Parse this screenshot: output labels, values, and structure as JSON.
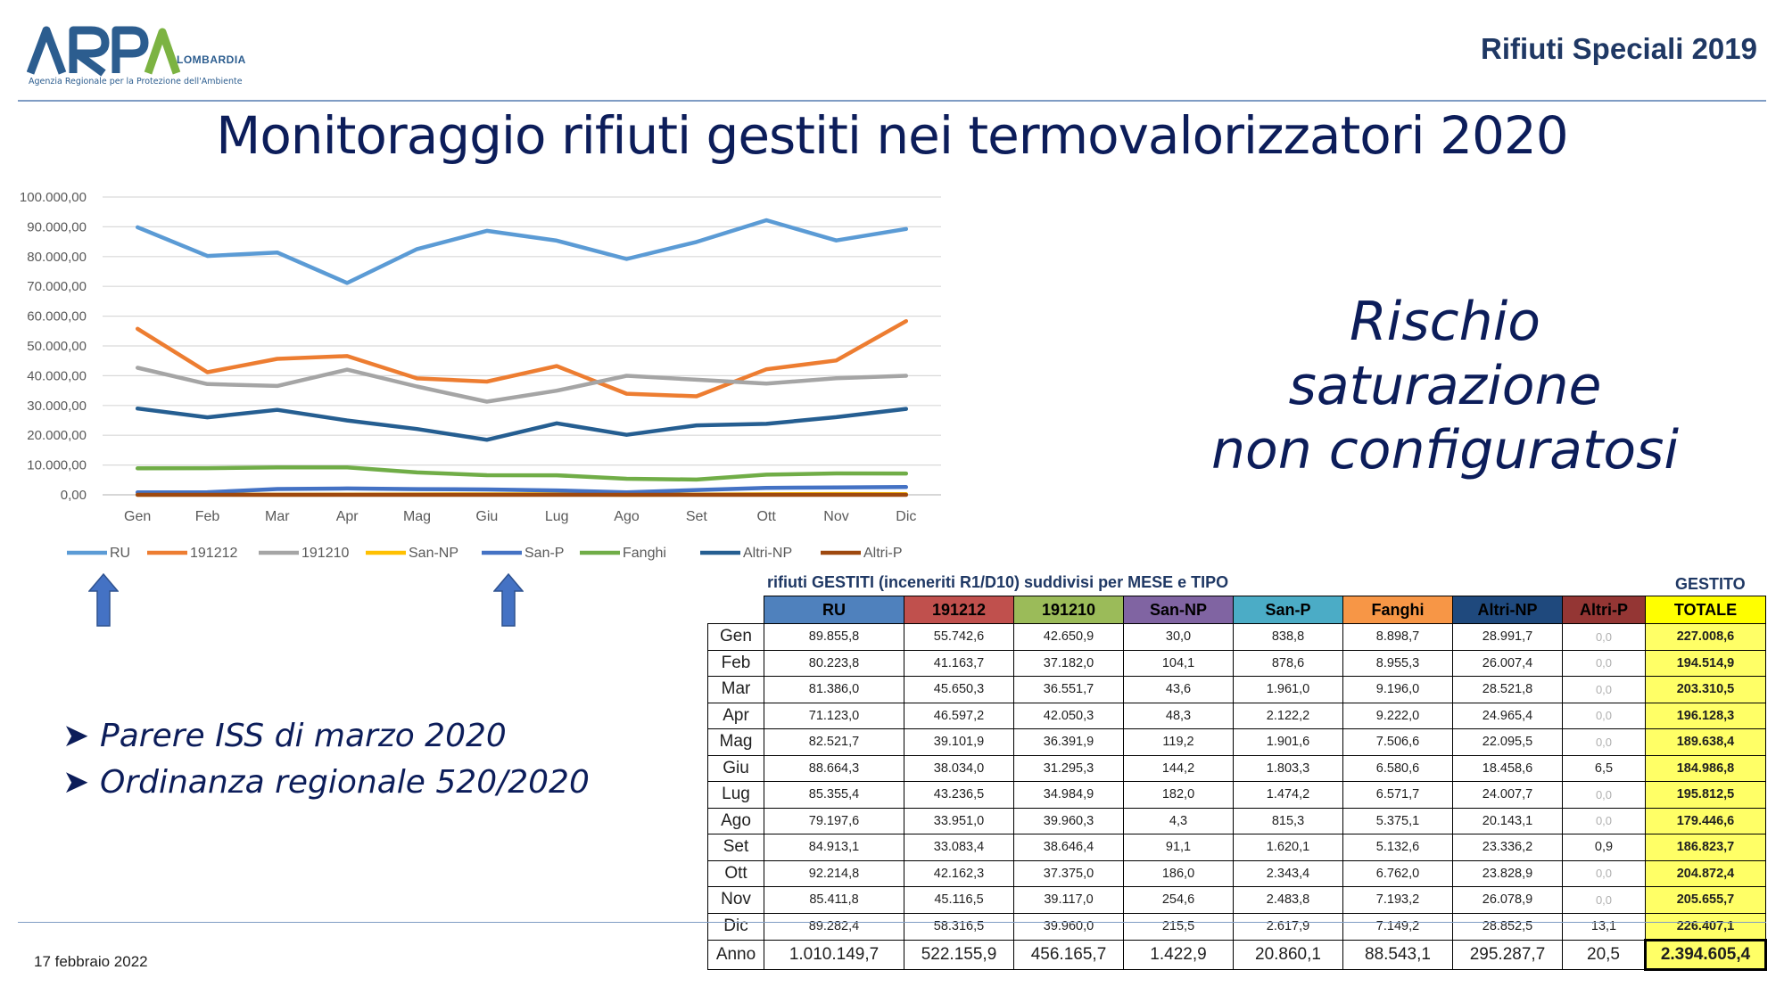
{
  "header": {
    "logo_name": "ARPA",
    "logo_region": "LOMBARDIA",
    "logo_subtitle": "Agenzia Regionale per la Protezione dell'Ambiente",
    "right_title": "Rifiuti Speciali 2019"
  },
  "main_title": "Monitoraggio rifiuti gestiti nei termovalorizzatori 2020",
  "side_text": [
    "Rischio",
    "saturazione",
    "non configuratosi"
  ],
  "bullets": [
    "Parere ISS di marzo 2020",
    "Ordinanza regionale 520/2020"
  ],
  "footer": {
    "date": "17 febbraio 2022"
  },
  "colors": {
    "title": "#0c1d5a",
    "arrow": "#4472c4",
    "total_highlight": "#ffff66"
  },
  "chart_data": {
    "type": "line",
    "categories": [
      "Gen",
      "Feb",
      "Mar",
      "Apr",
      "Mag",
      "Giu",
      "Lug",
      "Ago",
      "Set",
      "Ott",
      "Nov",
      "Dic"
    ],
    "ylim": [
      0,
      100000
    ],
    "yticks": [
      "0,00",
      "10.000,00",
      "20.000,00",
      "30.000,00",
      "40.000,00",
      "50.000,00",
      "60.000,00",
      "70.000,00",
      "80.000,00",
      "90.000,00",
      "100.000,00"
    ],
    "grid": true,
    "legend_position": "bottom",
    "series": [
      {
        "name": "RU",
        "color": "#5b9bd5",
        "values": [
          89855.8,
          80223.8,
          81386.0,
          71123.0,
          82521.7,
          88664.3,
          85355.4,
          79197.6,
          84913.1,
          92214.8,
          85411.8,
          89282.4
        ]
      },
      {
        "name": "191212",
        "color": "#ed7d31",
        "values": [
          55742.6,
          41163.7,
          45650.3,
          46597.2,
          39101.9,
          38034.0,
          43236.5,
          33951.0,
          33083.4,
          42162.3,
          45116.5,
          58316.5
        ]
      },
      {
        "name": "191210",
        "color": "#a5a5a5",
        "values": [
          42650.9,
          37182.0,
          36551.7,
          42050.3,
          36391.9,
          31295.3,
          34984.9,
          39960.3,
          38646.4,
          37375.0,
          39117.0,
          39960.0
        ]
      },
      {
        "name": "San-NP",
        "color": "#ffc000",
        "values": [
          30.0,
          104.1,
          43.6,
          48.3,
          119.2,
          144.2,
          182.0,
          4.3,
          91.1,
          186.0,
          254.6,
          215.5
        ]
      },
      {
        "name": "San-P",
        "color": "#4472c4",
        "values": [
          838.8,
          878.6,
          1961.0,
          2122.2,
          1901.6,
          1803.3,
          1474.2,
          815.3,
          1620.1,
          2343.4,
          2483.8,
          2617.9
        ]
      },
      {
        "name": "Fanghi",
        "color": "#70ad47",
        "values": [
          8898.7,
          8955.3,
          9196.0,
          9222.0,
          7506.6,
          6580.6,
          6571.7,
          5375.1,
          5132.6,
          6762.0,
          7193.2,
          7149.2
        ]
      },
      {
        "name": "Altri-NP",
        "color": "#255e91",
        "values": [
          28991.7,
          26007.4,
          28521.8,
          24965.4,
          22095.5,
          18458.6,
          24007.7,
          20143.1,
          23336.2,
          23828.9,
          26078.9,
          28852.5
        ]
      },
      {
        "name": "Altri-P",
        "color": "#9e480e",
        "values": [
          0.0,
          0.0,
          0.0,
          0.0,
          0.0,
          6.5,
          0.0,
          0.0,
          0.9,
          0.0,
          0.0,
          13.1
        ]
      }
    ]
  },
  "table": {
    "caption": "rifiuti GESTITI (inceneriti R1/D10) suddivisi per MESE e TIPO",
    "gestito_label": "GESTITO",
    "columns": [
      {
        "label": "RU",
        "color": "#4f81bd"
      },
      {
        "label": "191212",
        "color": "#c0504d"
      },
      {
        "label": "191210",
        "color": "#9bbb59"
      },
      {
        "label": "San-NP",
        "color": "#8064a2"
      },
      {
        "label": "San-P",
        "color": "#4bacc6"
      },
      {
        "label": "Fanghi",
        "color": "#f79646"
      },
      {
        "label": "Altri-NP",
        "color": "#1f497d"
      },
      {
        "label": "Altri-P",
        "color": "#943634"
      },
      {
        "label": "TOTALE",
        "color": "#ffff00"
      }
    ],
    "rows": [
      {
        "month": "Gen",
        "values": [
          "89.855,8",
          "55.742,6",
          "42.650,9",
          "30,0",
          "838,8",
          "8.898,7",
          "28.991,7",
          "0,0",
          "227.008,6"
        ]
      },
      {
        "month": "Feb",
        "values": [
          "80.223,8",
          "41.163,7",
          "37.182,0",
          "104,1",
          "878,6",
          "8.955,3",
          "26.007,4",
          "0,0",
          "194.514,9"
        ]
      },
      {
        "month": "Mar",
        "values": [
          "81.386,0",
          "45.650,3",
          "36.551,7",
          "43,6",
          "1.961,0",
          "9.196,0",
          "28.521,8",
          "0,0",
          "203.310,5"
        ]
      },
      {
        "month": "Apr",
        "values": [
          "71.123,0",
          "46.597,2",
          "42.050,3",
          "48,3",
          "2.122,2",
          "9.222,0",
          "24.965,4",
          "0,0",
          "196.128,3"
        ]
      },
      {
        "month": "Mag",
        "values": [
          "82.521,7",
          "39.101,9",
          "36.391,9",
          "119,2",
          "1.901,6",
          "7.506,6",
          "22.095,5",
          "0,0",
          "189.638,4"
        ]
      },
      {
        "month": "Giu",
        "values": [
          "88.664,3",
          "38.034,0",
          "31.295,3",
          "144,2",
          "1.803,3",
          "6.580,6",
          "18.458,6",
          "6,5",
          "184.986,8"
        ]
      },
      {
        "month": "Lug",
        "values": [
          "85.355,4",
          "43.236,5",
          "34.984,9",
          "182,0",
          "1.474,2",
          "6.571,7",
          "24.007,7",
          "0,0",
          "195.812,5"
        ]
      },
      {
        "month": "Ago",
        "values": [
          "79.197,6",
          "33.951,0",
          "39.960,3",
          "4,3",
          "815,3",
          "5.375,1",
          "20.143,1",
          "0,0",
          "179.446,6"
        ]
      },
      {
        "month": "Set",
        "values": [
          "84.913,1",
          "33.083,4",
          "38.646,4",
          "91,1",
          "1.620,1",
          "5.132,6",
          "23.336,2",
          "0,9",
          "186.823,7"
        ]
      },
      {
        "month": "Ott",
        "values": [
          "92.214,8",
          "42.162,3",
          "37.375,0",
          "186,0",
          "2.343,4",
          "6.762,0",
          "23.828,9",
          "0,0",
          "204.872,4"
        ]
      },
      {
        "month": "Nov",
        "values": [
          "85.411,8",
          "45.116,5",
          "39.117,0",
          "254,6",
          "2.483,8",
          "7.193,2",
          "26.078,9",
          "0,0",
          "205.655,7"
        ]
      },
      {
        "month": "Dic",
        "values": [
          "89.282,4",
          "58.316,5",
          "39.960,0",
          "215,5",
          "2.617,9",
          "7.149,2",
          "28.852,5",
          "13,1",
          "226.407,1"
        ]
      }
    ],
    "total_row": {
      "month": "Anno",
      "values": [
        "1.010.149,7",
        "522.155,9",
        "456.165,7",
        "1.422,9",
        "20.860,1",
        "88.543,1",
        "295.287,7",
        "20,5",
        "2.394.605,4"
      ]
    }
  }
}
